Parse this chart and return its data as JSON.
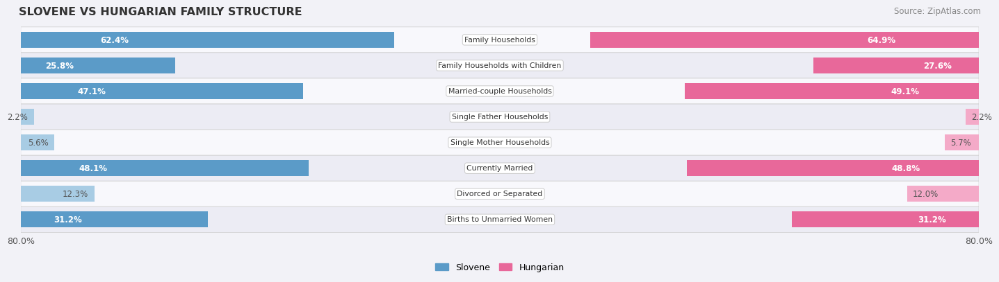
{
  "title": "SLOVENE VS HUNGARIAN FAMILY STRUCTURE",
  "source": "Source: ZipAtlas.com",
  "categories": [
    "Family Households",
    "Family Households with Children",
    "Married-couple Households",
    "Single Father Households",
    "Single Mother Households",
    "Currently Married",
    "Divorced or Separated",
    "Births to Unmarried Women"
  ],
  "slovene_values": [
    62.4,
    25.8,
    47.1,
    2.2,
    5.6,
    48.1,
    12.3,
    31.2
  ],
  "hungarian_values": [
    64.9,
    27.6,
    49.1,
    2.2,
    5.7,
    48.8,
    12.0,
    31.2
  ],
  "slovene_labels": [
    "62.4%",
    "25.8%",
    "47.1%",
    "2.2%",
    "5.6%",
    "48.1%",
    "12.3%",
    "31.2%"
  ],
  "hungarian_labels": [
    "64.9%",
    "27.6%",
    "49.1%",
    "2.2%",
    "5.7%",
    "48.8%",
    "12.0%",
    "31.2%"
  ],
  "max_value": 80.0,
  "slovene_color_high": "#5b9bc8",
  "slovene_color_low": "#a8cce4",
  "hungarian_color_high": "#e8689a",
  "hungarian_color_low": "#f4aac8",
  "bar_height": 0.62,
  "background_color": "#f2f2f7",
  "row_bg_odd": "#f8f8fc",
  "row_bg_even": "#ececf4",
  "label_threshold": 15,
  "label_inside_color_high": "white",
  "label_outside_color": "#666666"
}
